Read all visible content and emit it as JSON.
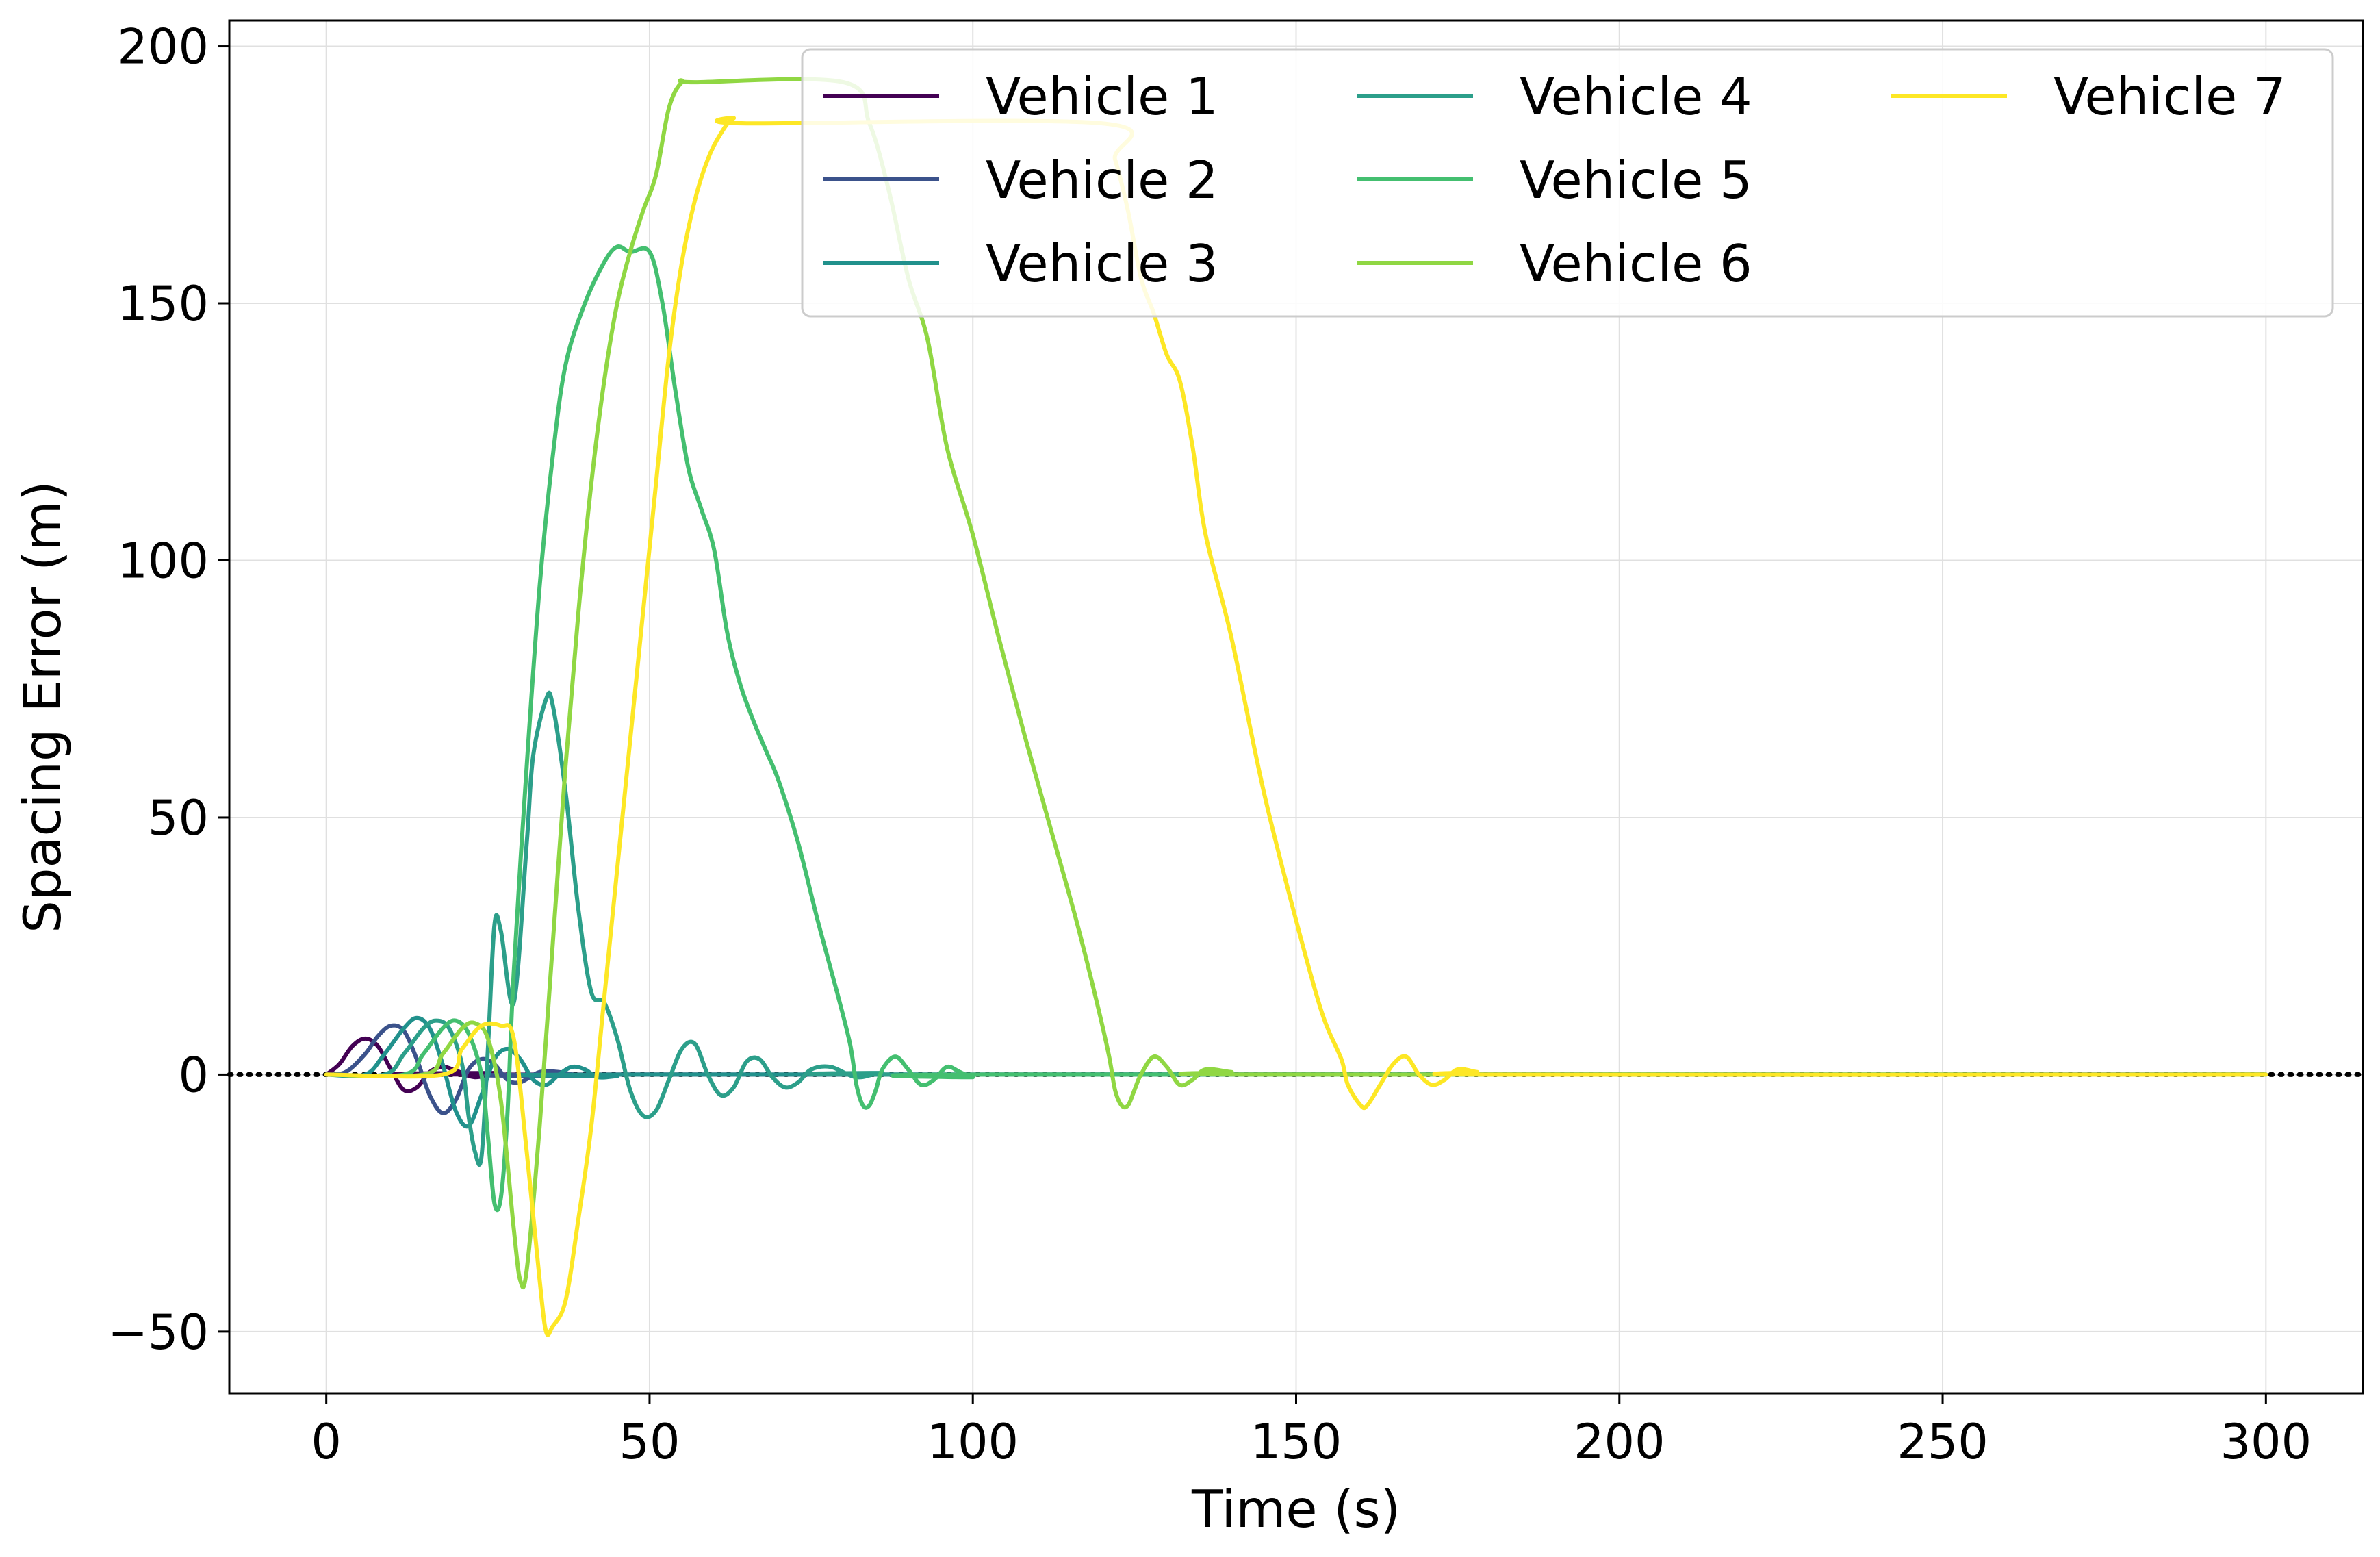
{
  "chart_data": {
    "type": "line",
    "title": "",
    "xlabel": "Time (s)",
    "ylabel": "Spacing Error (m)",
    "xlim": [
      -15,
      315
    ],
    "ylim": [
      -62,
      205
    ],
    "xticks": [
      0,
      50,
      100,
      150,
      200,
      250,
      300
    ],
    "yticks": [
      -50,
      0,
      50,
      100,
      150,
      200
    ],
    "xtick_labels": [
      "0",
      "50",
      "100",
      "150",
      "200",
      "250",
      "300"
    ],
    "ytick_labels": [
      "−50",
      "0",
      "50",
      "100",
      "150",
      "200"
    ],
    "grid": true,
    "legend_position": "top-right",
    "legend_columns": 3,
    "reference_line": {
      "y": 0,
      "style": "dotted",
      "color": "#000000"
    },
    "series": [
      {
        "name": "Vehicle 1",
        "color": "#440154",
        "points": [
          [
            0,
            0
          ],
          [
            2,
            2
          ],
          [
            4,
            5.5
          ],
          [
            6,
            7
          ],
          [
            8,
            5.5
          ],
          [
            10,
            1
          ],
          [
            12,
            -3
          ],
          [
            14,
            -2.5
          ],
          [
            16,
            0.5
          ],
          [
            18,
            1.5
          ],
          [
            20,
            0.8
          ],
          [
            23,
            -0.5
          ],
          [
            27,
            0.3
          ],
          [
            32,
            0
          ],
          [
            300,
            0
          ]
        ]
      },
      {
        "name": "Vehicle 2",
        "color": "#3b528b",
        "points": [
          [
            0,
            0
          ],
          [
            3,
            0.5
          ],
          [
            6,
            4
          ],
          [
            8,
            7.5
          ],
          [
            10,
            9.5
          ],
          [
            12,
            8.5
          ],
          [
            14,
            3
          ],
          [
            16,
            -4
          ],
          [
            18,
            -7.5
          ],
          [
            20,
            -5
          ],
          [
            22,
            1
          ],
          [
            24,
            3
          ],
          [
            26,
            2
          ],
          [
            28,
            -1
          ],
          [
            30,
            -1.5
          ],
          [
            33,
            0.5
          ],
          [
            36,
            0.5
          ],
          [
            40,
            -0.3
          ],
          [
            45,
            0
          ],
          [
            300,
            0
          ]
        ]
      },
      {
        "name": "Vehicle 3",
        "color": "#21918c",
        "points": [
          [
            0,
            0
          ],
          [
            6,
            0
          ],
          [
            9,
            4
          ],
          [
            12,
            9
          ],
          [
            14,
            11
          ],
          [
            16,
            9
          ],
          [
            18,
            2
          ],
          [
            20,
            -7
          ],
          [
            22,
            -10
          ],
          [
            24,
            -4
          ],
          [
            26,
            3
          ],
          [
            28,
            5
          ],
          [
            30,
            3
          ],
          [
            32,
            -1
          ],
          [
            34,
            -2
          ],
          [
            36,
            0
          ],
          [
            38,
            1.5
          ],
          [
            40,
            1
          ],
          [
            42,
            -0.5
          ],
          [
            45,
            -0.3
          ],
          [
            50,
            0
          ],
          [
            300,
            0
          ]
        ]
      },
      {
        "name": "Vehicle 4",
        "color": "#2c9f8a",
        "points": [
          [
            0,
            0
          ],
          [
            9,
            0
          ],
          [
            12,
            4
          ],
          [
            15,
            9
          ],
          [
            17,
            10.5
          ],
          [
            19,
            9
          ],
          [
            21,
            2
          ],
          [
            22,
            -8
          ],
          [
            23,
            -15
          ],
          [
            24,
            -16
          ],
          [
            25,
            5
          ],
          [
            26,
            29
          ],
          [
            27,
            28
          ],
          [
            29,
            14
          ],
          [
            31,
            45
          ],
          [
            32,
            62
          ],
          [
            34,
            73
          ],
          [
            35,
            72
          ],
          [
            37,
            55
          ],
          [
            39,
            32
          ],
          [
            41,
            16
          ],
          [
            43,
            14
          ],
          [
            45,
            7
          ],
          [
            47,
            -3
          ],
          [
            49,
            -8
          ],
          [
            51,
            -7
          ],
          [
            53,
            -1
          ],
          [
            55,
            5
          ],
          [
            57,
            6
          ],
          [
            59,
            0
          ],
          [
            61,
            -4
          ],
          [
            63,
            -2.5
          ],
          [
            65,
            2.5
          ],
          [
            67,
            3
          ],
          [
            69,
            -0.5
          ],
          [
            71,
            -2.5
          ],
          [
            73,
            -1.5
          ],
          [
            75,
            1
          ],
          [
            78,
            1.5
          ],
          [
            82,
            -0.5
          ],
          [
            86,
            0.3
          ],
          [
            92,
            0
          ],
          [
            300,
            0
          ]
        ]
      },
      {
        "name": "Vehicle 5",
        "color": "#44bf70",
        "points": [
          [
            0,
            0
          ],
          [
            12,
            0
          ],
          [
            15,
            4
          ],
          [
            18,
            9
          ],
          [
            20,
            10.5
          ],
          [
            22,
            8
          ],
          [
            24,
            0
          ],
          [
            25,
            -12
          ],
          [
            26,
            -25
          ],
          [
            27,
            -24
          ],
          [
            28,
            -8
          ],
          [
            29,
            20
          ],
          [
            31,
            60
          ],
          [
            33,
            95
          ],
          [
            35,
            120
          ],
          [
            37,
            138
          ],
          [
            40,
            150
          ],
          [
            43,
            158
          ],
          [
            45,
            161
          ],
          [
            47,
            160
          ],
          [
            50,
            160
          ],
          [
            52,
            150
          ],
          [
            54,
            133
          ],
          [
            56,
            118
          ],
          [
            58,
            110
          ],
          [
            60,
            102
          ],
          [
            62,
            86
          ],
          [
            64,
            76
          ],
          [
            66,
            69
          ],
          [
            68,
            63
          ],
          [
            70,
            57
          ],
          [
            73,
            45
          ],
          [
            76,
            30
          ],
          [
            79,
            16
          ],
          [
            81,
            6
          ],
          [
            82,
            -2
          ],
          [
            83,
            -6
          ],
          [
            84,
            -6
          ],
          [
            85,
            -3
          ],
          [
            86,
            1
          ],
          [
            88,
            3.5
          ],
          [
            90,
            1
          ],
          [
            92,
            -2
          ],
          [
            94,
            -1
          ],
          [
            96,
            1.5
          ],
          [
            98,
            0.5
          ],
          [
            100,
            -0.5
          ],
          [
            103,
            0
          ],
          [
            300,
            0
          ]
        ]
      },
      {
        "name": "Vehicle 6",
        "color": "#90d743",
        "points": [
          [
            0,
            0
          ],
          [
            15,
            0
          ],
          [
            18,
            4
          ],
          [
            21,
            9
          ],
          [
            23,
            10
          ],
          [
            25,
            7
          ],
          [
            27,
            -5
          ],
          [
            29,
            -30
          ],
          [
            30,
            -40
          ],
          [
            31,
            -38
          ],
          [
            33,
            -10
          ],
          [
            35,
            25
          ],
          [
            37,
            60
          ],
          [
            39,
            90
          ],
          [
            41,
            115
          ],
          [
            43,
            135
          ],
          [
            45,
            150
          ],
          [
            47,
            160
          ],
          [
            49,
            168
          ],
          [
            51,
            175
          ],
          [
            53,
            188
          ],
          [
            55,
            193
          ],
          [
            57,
            193
          ],
          [
            80,
            193
          ],
          [
            84,
            185
          ],
          [
            87,
            172
          ],
          [
            90,
            155
          ],
          [
            93,
            143
          ],
          [
            96,
            122
          ],
          [
            100,
            105
          ],
          [
            104,
            85
          ],
          [
            108,
            66
          ],
          [
            112,
            48
          ],
          [
            116,
            30
          ],
          [
            119,
            15
          ],
          [
            121,
            4
          ],
          [
            122,
            -3
          ],
          [
            123,
            -6
          ],
          [
            124,
            -6
          ],
          [
            125,
            -3
          ],
          [
            126,
            0
          ],
          [
            128,
            3.5
          ],
          [
            130,
            1.5
          ],
          [
            132,
            -2
          ],
          [
            134,
            -1
          ],
          [
            136,
            1
          ],
          [
            140,
            0.5
          ],
          [
            145,
            0
          ],
          [
            300,
            0
          ]
        ]
      },
      {
        "name": "Vehicle 7",
        "color": "#fde725",
        "points": [
          [
            0,
            0
          ],
          [
            18,
            0
          ],
          [
            21,
            5
          ],
          [
            24,
            9.5
          ],
          [
            27,
            9.5
          ],
          [
            29,
            7
          ],
          [
            31,
            -15
          ],
          [
            33,
            -40
          ],
          [
            34,
            -50
          ],
          [
            35,
            -49
          ],
          [
            37,
            -44
          ],
          [
            39,
            -28
          ],
          [
            41,
            -10
          ],
          [
            43,
            15
          ],
          [
            45,
            40
          ],
          [
            47,
            65
          ],
          [
            49,
            90
          ],
          [
            51,
            115
          ],
          [
            53,
            140
          ],
          [
            55,
            158
          ],
          [
            57,
            170
          ],
          [
            59,
            178
          ],
          [
            61,
            183
          ],
          [
            63,
            186
          ],
          [
            65,
            185
          ],
          [
            120,
            185
          ],
          [
            122,
            178
          ],
          [
            124,
            168
          ],
          [
            126,
            155
          ],
          [
            128,
            148
          ],
          [
            130,
            140
          ],
          [
            132,
            135
          ],
          [
            134,
            122
          ],
          [
            136,
            105
          ],
          [
            140,
            85
          ],
          [
            145,
            55
          ],
          [
            150,
            30
          ],
          [
            154,
            12
          ],
          [
            157,
            3
          ],
          [
            158,
            -2
          ],
          [
            160,
            -6
          ],
          [
            161,
            -6
          ],
          [
            163,
            -2
          ],
          [
            165,
            2
          ],
          [
            167,
            3.5
          ],
          [
            169,
            0
          ],
          [
            171,
            -2
          ],
          [
            173,
            -1
          ],
          [
            175,
            1
          ],
          [
            178,
            0.5
          ],
          [
            181,
            0
          ],
          [
            300,
            0
          ]
        ]
      }
    ]
  }
}
